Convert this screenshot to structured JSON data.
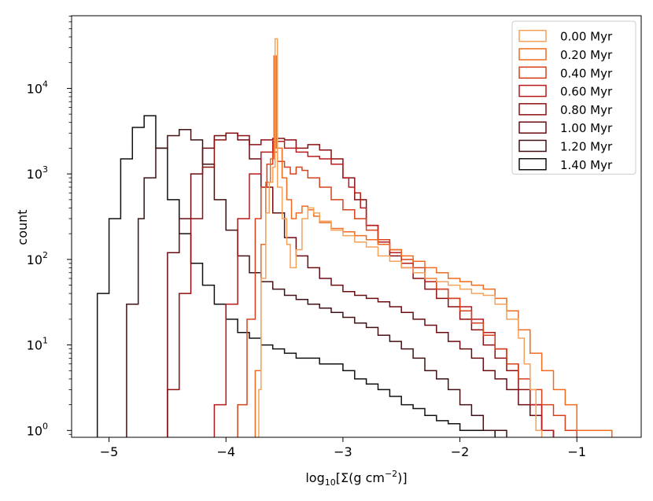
{
  "chart_data": {
    "type": "histogram",
    "xlabel_parts": {
      "base": "log",
      "sub": "10",
      "mid": "[Σ(g cm",
      "sup": "−2",
      "end": ")]"
    },
    "ylabel": "count",
    "xlim": [
      -5.32,
      -0.45
    ],
    "ylim_log10": [
      -0.08,
      4.85
    ],
    "yscale": "log",
    "x_ticks": [
      {
        "value": -5,
        "label": "−5"
      },
      {
        "value": -4,
        "label": "−4"
      },
      {
        "value": -3,
        "label": "−3"
      },
      {
        "value": -2,
        "label": "−2"
      },
      {
        "value": -1,
        "label": "−1"
      }
    ],
    "y_ticks": [
      {
        "exp": 0,
        "base": "10",
        "sup": "0"
      },
      {
        "exp": 1,
        "base": "10",
        "sup": "1"
      },
      {
        "exp": 2,
        "base": "10",
        "sup": "2"
      },
      {
        "exp": 3,
        "base": "10",
        "sup": "3"
      },
      {
        "exp": 4,
        "base": "10",
        "sup": "4"
      }
    ],
    "legend_position": "top-right",
    "series": [
      {
        "name": "0.00 Myr",
        "color": "#f4a25a",
        "points": [
          [
            -3.75,
            0
          ],
          [
            -3.72,
            3
          ],
          [
            -3.7,
            60
          ],
          [
            -3.66,
            350
          ],
          [
            -3.63,
            800
          ],
          [
            -3.6,
            1200
          ],
          [
            -3.58,
            38000
          ],
          [
            -3.56,
            700
          ],
          [
            -3.52,
            300
          ],
          [
            -3.48,
            150
          ],
          [
            -3.45,
            80
          ],
          [
            -3.4,
            130
          ],
          [
            -3.35,
            300
          ],
          [
            -3.3,
            400
          ],
          [
            -3.25,
            350
          ],
          [
            -3.2,
            280
          ],
          [
            -3.1,
            220
          ],
          [
            -3.0,
            190
          ],
          [
            -2.9,
            160
          ],
          [
            -2.8,
            140
          ],
          [
            -2.7,
            110
          ],
          [
            -2.6,
            95
          ],
          [
            -2.5,
            80
          ],
          [
            -2.4,
            70
          ],
          [
            -2.3,
            60
          ],
          [
            -2.2,
            55
          ],
          [
            -2.1,
            50
          ],
          [
            -2.0,
            45
          ],
          [
            -1.9,
            40
          ],
          [
            -1.8,
            38
          ],
          [
            -1.7,
            30
          ],
          [
            -1.6,
            20
          ],
          [
            -1.5,
            12
          ],
          [
            -1.45,
            6
          ],
          [
            -1.4,
            3
          ],
          [
            -1.35,
            1
          ],
          [
            -1.3,
            0
          ]
        ]
      },
      {
        "name": "0.20 Myr",
        "color": "#ee6b1f",
        "points": [
          [
            -3.78,
            0
          ],
          [
            -3.75,
            5
          ],
          [
            -3.7,
            150
          ],
          [
            -3.66,
            800
          ],
          [
            -3.62,
            1500
          ],
          [
            -3.59,
            24000
          ],
          [
            -3.57,
            2000
          ],
          [
            -3.52,
            900
          ],
          [
            -3.48,
            500
          ],
          [
            -3.44,
            300
          ],
          [
            -3.4,
            350
          ],
          [
            -3.35,
            420
          ],
          [
            -3.3,
            380
          ],
          [
            -3.25,
            320
          ],
          [
            -3.2,
            270
          ],
          [
            -3.1,
            230
          ],
          [
            -3.0,
            210
          ],
          [
            -2.9,
            190
          ],
          [
            -2.8,
            170
          ],
          [
            -2.7,
            150
          ],
          [
            -2.6,
            130
          ],
          [
            -2.5,
            110
          ],
          [
            -2.4,
            95
          ],
          [
            -2.3,
            80
          ],
          [
            -2.2,
            70
          ],
          [
            -2.1,
            60
          ],
          [
            -2.0,
            55
          ],
          [
            -1.9,
            50
          ],
          [
            -1.8,
            45
          ],
          [
            -1.7,
            35
          ],
          [
            -1.6,
            25
          ],
          [
            -1.5,
            15
          ],
          [
            -1.4,
            8
          ],
          [
            -1.3,
            5
          ],
          [
            -1.2,
            3
          ],
          [
            -1.1,
            2
          ],
          [
            -1.0,
            1
          ],
          [
            -0.9,
            1
          ],
          [
            -0.8,
            1
          ],
          [
            -0.7,
            0
          ]
        ]
      },
      {
        "name": "0.40 Myr",
        "color": "#d8401c",
        "points": [
          [
            -3.95,
            0
          ],
          [
            -3.9,
            2
          ],
          [
            -3.82,
            20
          ],
          [
            -3.75,
            300
          ],
          [
            -3.7,
            700
          ],
          [
            -3.65,
            1300
          ],
          [
            -3.6,
            1800
          ],
          [
            -3.56,
            1400
          ],
          [
            -3.5,
            1200
          ],
          [
            -3.45,
            1000
          ],
          [
            -3.4,
            1200
          ],
          [
            -3.35,
            1100
          ],
          [
            -3.3,
            900
          ],
          [
            -3.2,
            700
          ],
          [
            -3.1,
            500
          ],
          [
            -3.0,
            380
          ],
          [
            -2.9,
            300
          ],
          [
            -2.8,
            220
          ],
          [
            -2.7,
            170
          ],
          [
            -2.6,
            130
          ],
          [
            -2.5,
            100
          ],
          [
            -2.4,
            80
          ],
          [
            -2.3,
            60
          ],
          [
            -2.2,
            45
          ],
          [
            -2.1,
            35
          ],
          [
            -2.0,
            25
          ],
          [
            -1.9,
            18
          ],
          [
            -1.8,
            13
          ],
          [
            -1.7,
            9
          ],
          [
            -1.6,
            6
          ],
          [
            -1.5,
            4
          ],
          [
            -1.4,
            3
          ],
          [
            -1.3,
            2
          ],
          [
            -1.2,
            1.5
          ],
          [
            -1.1,
            1
          ],
          [
            -1.0,
            0
          ]
        ]
      },
      {
        "name": "0.60 Myr",
        "color": "#b8191a",
        "points": [
          [
            -4.15,
            0
          ],
          [
            -4.1,
            2
          ],
          [
            -4.0,
            30
          ],
          [
            -3.9,
            300
          ],
          [
            -3.8,
            1000
          ],
          [
            -3.7,
            1800
          ],
          [
            -3.6,
            2400
          ],
          [
            -3.5,
            2000
          ],
          [
            -3.4,
            1800
          ],
          [
            -3.3,
            1600
          ],
          [
            -3.2,
            1500
          ],
          [
            -3.1,
            1300
          ],
          [
            -3.0,
            900
          ],
          [
            -2.95,
            700
          ],
          [
            -2.9,
            600
          ],
          [
            -2.85,
            400
          ],
          [
            -2.8,
            250
          ],
          [
            -2.7,
            160
          ],
          [
            -2.6,
            120
          ],
          [
            -2.5,
            90
          ],
          [
            -2.4,
            70
          ],
          [
            -2.3,
            55
          ],
          [
            -2.2,
            45
          ],
          [
            -2.1,
            35
          ],
          [
            -2.0,
            28
          ],
          [
            -1.9,
            20
          ],
          [
            -1.8,
            14
          ],
          [
            -1.7,
            9
          ],
          [
            -1.6,
            6
          ],
          [
            -1.5,
            4
          ],
          [
            -1.4,
            2
          ],
          [
            -1.3,
            1
          ],
          [
            -1.2,
            0
          ]
        ]
      },
      {
        "name": "0.80 Myr",
        "color": "#8c0f10",
        "points": [
          [
            -4.55,
            0
          ],
          [
            -4.5,
            3
          ],
          [
            -4.4,
            40
          ],
          [
            -4.3,
            300
          ],
          [
            -4.2,
            1200
          ],
          [
            -4.1,
            2500
          ],
          [
            -4.0,
            3000
          ],
          [
            -3.9,
            2800
          ],
          [
            -3.8,
            2200
          ],
          [
            -3.7,
            2500
          ],
          [
            -3.6,
            2600
          ],
          [
            -3.5,
            2500
          ],
          [
            -3.4,
            2000
          ],
          [
            -3.3,
            2200
          ],
          [
            -3.2,
            1900
          ],
          [
            -3.1,
            1500
          ],
          [
            -3.0,
            900
          ],
          [
            -2.9,
            500
          ],
          [
            -2.8,
            250
          ],
          [
            -2.7,
            150
          ],
          [
            -2.6,
            110
          ],
          [
            -2.5,
            80
          ],
          [
            -2.4,
            60
          ],
          [
            -2.3,
            45
          ],
          [
            -2.2,
            35
          ],
          [
            -2.1,
            28
          ],
          [
            -2.0,
            20
          ],
          [
            -1.9,
            15
          ],
          [
            -1.8,
            10
          ],
          [
            -1.7,
            7
          ],
          [
            -1.6,
            5
          ],
          [
            -1.5,
            3
          ],
          [
            -1.4,
            2
          ],
          [
            -1.3,
            1
          ],
          [
            -1.2,
            0
          ]
        ]
      },
      {
        "name": "1.00 Myr",
        "color": "#6b0b10",
        "points": [
          [
            -4.58,
            0
          ],
          [
            -4.5,
            120
          ],
          [
            -4.4,
            300
          ],
          [
            -4.3,
            1000
          ],
          [
            -4.2,
            2000
          ],
          [
            -4.1,
            2800
          ],
          [
            -4.0,
            3000
          ],
          [
            -3.9,
            2500
          ],
          [
            -3.8,
            1500
          ],
          [
            -3.7,
            700
          ],
          [
            -3.6,
            350
          ],
          [
            -3.5,
            180
          ],
          [
            -3.4,
            110
          ],
          [
            -3.3,
            80
          ],
          [
            -3.2,
            60
          ],
          [
            -3.1,
            50
          ],
          [
            -3.0,
            42
          ],
          [
            -2.9,
            38
          ],
          [
            -2.8,
            35
          ],
          [
            -2.7,
            32
          ],
          [
            -2.6,
            28
          ],
          [
            -2.5,
            24
          ],
          [
            -2.4,
            20
          ],
          [
            -2.3,
            17
          ],
          [
            -2.2,
            14
          ],
          [
            -2.1,
            11
          ],
          [
            -2.0,
            9
          ],
          [
            -1.9,
            7
          ],
          [
            -1.8,
            5
          ],
          [
            -1.7,
            4
          ],
          [
            -1.6,
            3
          ],
          [
            -1.5,
            2
          ],
          [
            -1.4,
            1.5
          ],
          [
            -1.3,
            1
          ],
          [
            -1.2,
            0
          ]
        ]
      },
      {
        "name": "1.20 Myr",
        "color": "#421013",
        "points": [
          [
            -4.88,
            0
          ],
          [
            -4.85,
            30
          ],
          [
            -4.75,
            300
          ],
          [
            -4.7,
            900
          ],
          [
            -4.6,
            2000
          ],
          [
            -4.5,
            2800
          ],
          [
            -4.4,
            3300
          ],
          [
            -4.3,
            2500
          ],
          [
            -4.2,
            1300
          ],
          [
            -4.1,
            500
          ],
          [
            -4.0,
            220
          ],
          [
            -3.9,
            110
          ],
          [
            -3.8,
            70
          ],
          [
            -3.7,
            55
          ],
          [
            -3.6,
            45
          ],
          [
            -3.5,
            38
          ],
          [
            -3.4,
            34
          ],
          [
            -3.3,
            30
          ],
          [
            -3.2,
            27
          ],
          [
            -3.1,
            24
          ],
          [
            -3.0,
            21
          ],
          [
            -2.9,
            18
          ],
          [
            -2.8,
            16
          ],
          [
            -2.7,
            13
          ],
          [
            -2.6,
            11
          ],
          [
            -2.5,
            9
          ],
          [
            -2.4,
            7
          ],
          [
            -2.3,
            5
          ],
          [
            -2.2,
            4
          ],
          [
            -2.1,
            3
          ],
          [
            -2.0,
            2
          ],
          [
            -1.9,
            1.5
          ],
          [
            -1.8,
            1
          ],
          [
            -1.6,
            0
          ]
        ]
      },
      {
        "name": "1.40 Myr",
        "color": "#111111",
        "points": [
          [
            -5.12,
            0
          ],
          [
            -5.1,
            40
          ],
          [
            -5.0,
            300
          ],
          [
            -4.9,
            1500
          ],
          [
            -4.8,
            3500
          ],
          [
            -4.7,
            4800
          ],
          [
            -4.6,
            2000
          ],
          [
            -4.5,
            500
          ],
          [
            -4.4,
            200
          ],
          [
            -4.3,
            90
          ],
          [
            -4.2,
            50
          ],
          [
            -4.1,
            30
          ],
          [
            -4.0,
            20
          ],
          [
            -3.9,
            14
          ],
          [
            -3.8,
            12
          ],
          [
            -3.7,
            10
          ],
          [
            -3.6,
            9
          ],
          [
            -3.5,
            8
          ],
          [
            -3.4,
            7
          ],
          [
            -3.3,
            7
          ],
          [
            -3.2,
            6
          ],
          [
            -3.1,
            6
          ],
          [
            -3.0,
            5
          ],
          [
            -2.9,
            4
          ],
          [
            -2.8,
            3.5
          ],
          [
            -2.7,
            3
          ],
          [
            -2.6,
            2.5
          ],
          [
            -2.5,
            2
          ],
          [
            -2.4,
            1.8
          ],
          [
            -2.3,
            1.5
          ],
          [
            -2.2,
            1.3
          ],
          [
            -2.1,
            1.2
          ],
          [
            -2.0,
            1
          ],
          [
            -1.9,
            1
          ],
          [
            -1.8,
            1
          ],
          [
            -1.7,
            0
          ]
        ]
      }
    ]
  }
}
